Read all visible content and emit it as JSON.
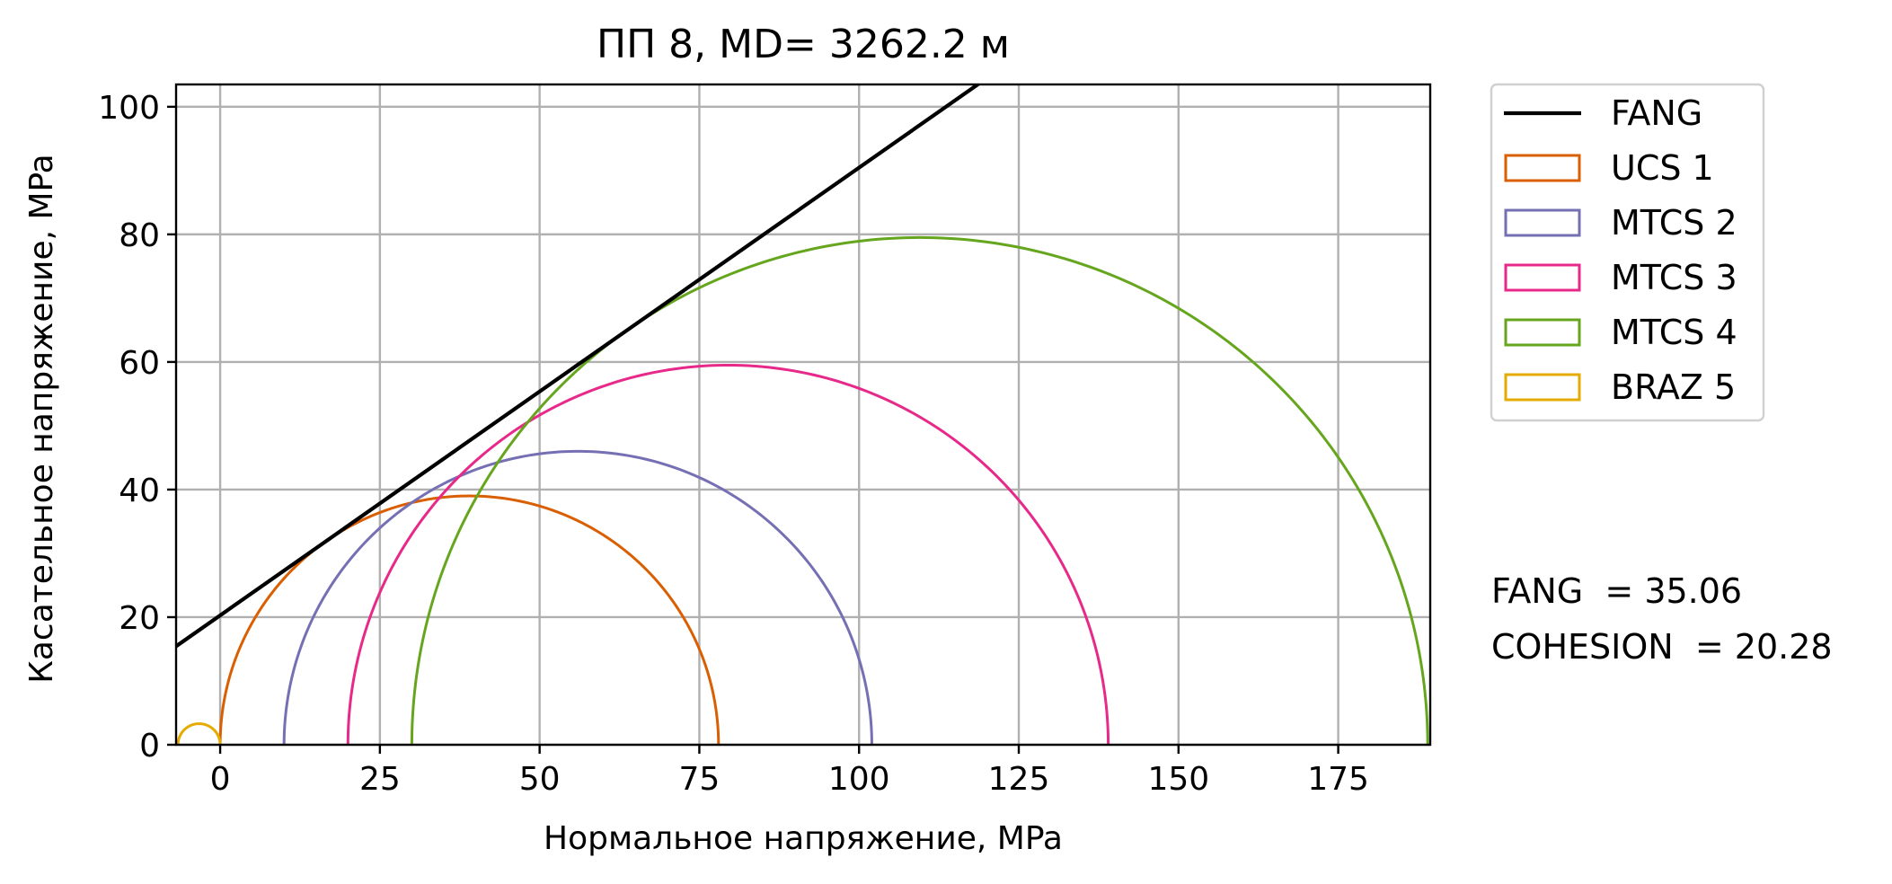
{
  "chart_data": {
    "type": "line",
    "title": "ПП 8, MD= 3262.2 м",
    "xlabel": "Нормальное напряжение, MPa",
    "ylabel": "Касательное напряжение, MPa",
    "xlim": [
      -6.9,
      189.4
    ],
    "ylim": [
      0,
      103.5
    ],
    "xticks": [
      0,
      25,
      50,
      75,
      100,
      125,
      150,
      175
    ],
    "yticks": [
      0,
      20,
      40,
      60,
      80,
      100
    ],
    "grid": true,
    "legend_position": "outside-top-right",
    "failure_line": {
      "name": "FANG",
      "color": "#000000",
      "angle_deg": 35.06,
      "cohesion": 20.28
    },
    "series": [
      {
        "name": "UCS 1",
        "color": "#d95f02",
        "sigma3": 0.0,
        "sigma1": 78.0
      },
      {
        "name": "MTCS 2",
        "color": "#7570b3",
        "sigma3": 10.0,
        "sigma1": 102.0
      },
      {
        "name": "MTCS 3",
        "color": "#e7298a",
        "sigma3": 20.0,
        "sigma1": 139.0
      },
      {
        "name": "MTCS 4",
        "color": "#66a61e",
        "sigma3": 30.0,
        "sigma1": 189.0
      },
      {
        "name": "BRAZ 5",
        "color": "#e6ab02",
        "sigma3": -6.6,
        "sigma1": 0.0
      }
    ],
    "annotations": [
      "FANG  = 35.06",
      "COHESION  = 20.28"
    ]
  }
}
